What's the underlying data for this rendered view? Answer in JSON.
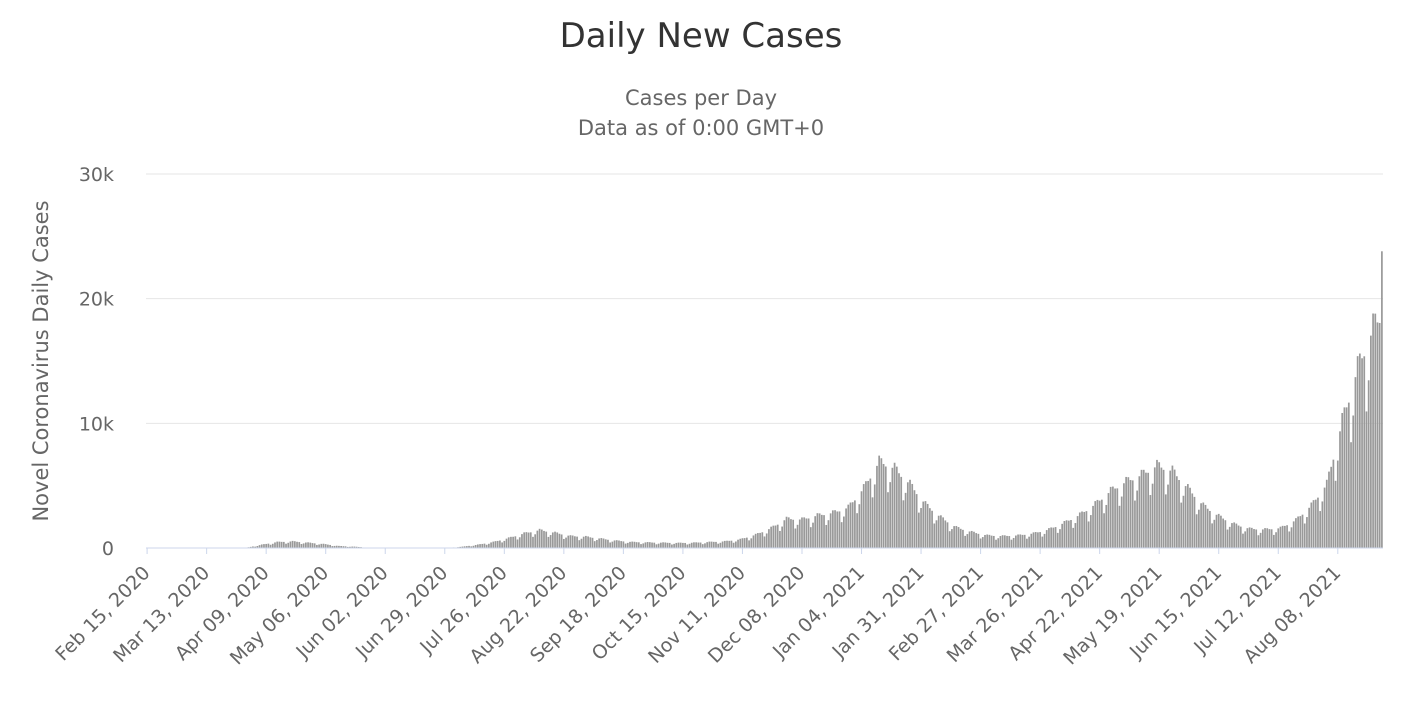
{
  "chart_data": {
    "type": "bar",
    "title": "Daily New Cases",
    "subtitle_lines": [
      "Cases per Day",
      "Data as of 0:00 GMT+0"
    ],
    "ylabel": "Novel Coronavirus Daily Cases",
    "ylim": [
      0,
      30000
    ],
    "y_ticks": [
      0,
      10000,
      20000,
      30000
    ],
    "y_tick_labels": [
      "0",
      "10k",
      "20k",
      "30k"
    ],
    "x_tick_labels": [
      "Feb 15, 2020",
      "Mar 13, 2020",
      "Apr 09, 2020",
      "May 06, 2020",
      "Jun 02, 2020",
      "Jun 29, 2020",
      "Jul 26, 2020",
      "Aug 22, 2020",
      "Sep 18, 2020",
      "Oct 15, 2020",
      "Nov 11, 2020",
      "Dec 08, 2020",
      "Jan 04, 2021",
      "Jan 31, 2021",
      "Feb 27, 2021",
      "Mar 26, 2021",
      "Apr 22, 2021",
      "May 19, 2021",
      "Jun 15, 2021",
      "Jul 12, 2021",
      "Aug 08, 2021"
    ],
    "x_tick_dates": [
      "2020-02-15",
      "2020-03-13",
      "2020-04-09",
      "2020-05-06",
      "2020-06-02",
      "2020-06-29",
      "2020-07-26",
      "2020-08-22",
      "2020-09-18",
      "2020-10-15",
      "2020-11-11",
      "2020-12-08",
      "2021-01-04",
      "2021-01-31",
      "2021-02-27",
      "2021-03-26",
      "2021-04-22",
      "2021-05-19",
      "2021-06-15",
      "2021-07-12",
      "2021-08-08"
    ],
    "x_range": [
      "2020-02-15",
      "2021-08-28"
    ],
    "grid": true,
    "bar_color": "#999999",
    "series": [
      {
        "weekly_avg": [
          {
            "week_start": "2020-02-15",
            "value": 0
          },
          {
            "week_start": "2020-02-22",
            "value": 0
          },
          {
            "week_start": "2020-02-29",
            "value": 0
          },
          {
            "week_start": "2020-03-07",
            "value": 0
          },
          {
            "week_start": "2020-03-14",
            "value": 0
          },
          {
            "week_start": "2020-03-21",
            "value": 0
          },
          {
            "week_start": "2020-03-28",
            "value": 20
          },
          {
            "week_start": "2020-04-04",
            "value": 250
          },
          {
            "week_start": "2020-04-11",
            "value": 450
          },
          {
            "week_start": "2020-04-18",
            "value": 500
          },
          {
            "week_start": "2020-04-25",
            "value": 400
          },
          {
            "week_start": "2020-05-02",
            "value": 300
          },
          {
            "week_start": "2020-05-09",
            "value": 150
          },
          {
            "week_start": "2020-05-16",
            "value": 100
          },
          {
            "week_start": "2020-05-23",
            "value": 20
          },
          {
            "week_start": "2020-05-30",
            "value": 0
          },
          {
            "week_start": "2020-06-06",
            "value": 0
          },
          {
            "week_start": "2020-06-13",
            "value": 0
          },
          {
            "week_start": "2020-06-20",
            "value": 0
          },
          {
            "week_start": "2020-06-27",
            "value": 0
          },
          {
            "week_start": "2020-07-04",
            "value": 100
          },
          {
            "week_start": "2020-07-11",
            "value": 250
          },
          {
            "week_start": "2020-07-18",
            "value": 450
          },
          {
            "week_start": "2020-07-25",
            "value": 750
          },
          {
            "week_start": "2020-08-01",
            "value": 1100
          },
          {
            "week_start": "2020-08-08",
            "value": 1350
          },
          {
            "week_start": "2020-08-15",
            "value": 1150
          },
          {
            "week_start": "2020-08-22",
            "value": 900
          },
          {
            "week_start": "2020-08-29",
            "value": 850
          },
          {
            "week_start": "2020-09-05",
            "value": 700
          },
          {
            "week_start": "2020-09-12",
            "value": 550
          },
          {
            "week_start": "2020-09-19",
            "value": 450
          },
          {
            "week_start": "2020-09-26",
            "value": 420
          },
          {
            "week_start": "2020-10-03",
            "value": 400
          },
          {
            "week_start": "2020-10-10",
            "value": 380
          },
          {
            "week_start": "2020-10-17",
            "value": 400
          },
          {
            "week_start": "2020-10-24",
            "value": 450
          },
          {
            "week_start": "2020-10-31",
            "value": 500
          },
          {
            "week_start": "2020-11-07",
            "value": 650
          },
          {
            "week_start": "2020-11-14",
            "value": 1000
          },
          {
            "week_start": "2020-11-21",
            "value": 1500
          },
          {
            "week_start": "2020-11-28",
            "value": 2200
          },
          {
            "week_start": "2020-12-05",
            "value": 2150
          },
          {
            "week_start": "2020-12-12",
            "value": 2450
          },
          {
            "week_start": "2020-12-19",
            "value": 2650
          },
          {
            "week_start": "2020-12-26",
            "value": 3050
          },
          {
            "week_start": "2021-01-02",
            "value": 4500
          },
          {
            "week_start": "2021-01-09",
            "value": 6500
          },
          {
            "week_start": "2021-01-16",
            "value": 6000
          },
          {
            "week_start": "2021-01-23",
            "value": 4800
          },
          {
            "week_start": "2021-01-30",
            "value": 3300
          },
          {
            "week_start": "2021-02-06",
            "value": 2300
          },
          {
            "week_start": "2021-02-13",
            "value": 1550
          },
          {
            "week_start": "2021-02-20",
            "value": 1200
          },
          {
            "week_start": "2021-02-27",
            "value": 950
          },
          {
            "week_start": "2021-03-06",
            "value": 900
          },
          {
            "week_start": "2021-03-13",
            "value": 950
          },
          {
            "week_start": "2021-03-20",
            "value": 1100
          },
          {
            "week_start": "2021-03-27",
            "value": 1400
          },
          {
            "week_start": "2021-04-03",
            "value": 1900
          },
          {
            "week_start": "2021-04-10",
            "value": 2500
          },
          {
            "week_start": "2021-04-17",
            "value": 3300
          },
          {
            "week_start": "2021-04-24",
            "value": 4300
          },
          {
            "week_start": "2021-05-01",
            "value": 5000
          },
          {
            "week_start": "2021-05-08",
            "value": 5500
          },
          {
            "week_start": "2021-05-15",
            "value": 6200
          },
          {
            "week_start": "2021-05-22",
            "value": 5800
          },
          {
            "week_start": "2021-05-29",
            "value": 4500
          },
          {
            "week_start": "2021-06-05",
            "value": 3200
          },
          {
            "week_start": "2021-06-12",
            "value": 2400
          },
          {
            "week_start": "2021-06-19",
            "value": 1800
          },
          {
            "week_start": "2021-06-26",
            "value": 1450
          },
          {
            "week_start": "2021-07-03",
            "value": 1400
          },
          {
            "week_start": "2021-07-10",
            "value": 1500
          },
          {
            "week_start": "2021-07-17",
            "value": 2100
          },
          {
            "week_start": "2021-07-24",
            "value": 3200
          },
          {
            "week_start": "2021-07-31",
            "value": 4800
          },
          {
            "week_start": "2021-08-07",
            "value": 9500
          },
          {
            "week_start": "2021-08-14",
            "value": 13500
          },
          {
            "week_start": "2021-08-21",
            "value": 16500
          },
          {
            "week_start": "2021-08-28",
            "value": 18500
          }
        ],
        "last_value": 23800
      }
    ]
  }
}
